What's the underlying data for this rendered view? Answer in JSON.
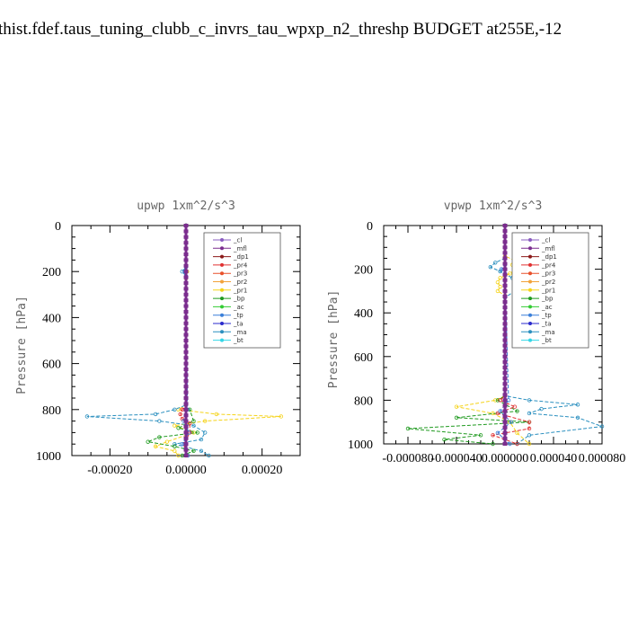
{
  "header": {
    "title": "thist.fdef.taus_tuning_clubb_c_invrs_tau_wpxp_n2_threshp  BUDGET at255E,-12"
  },
  "legend_colors": {
    "_cl": "#8a5cc0",
    "_mfl": "#7b2d8e",
    "_dp1": "#8b1a1a",
    "_pr4": "#e03030",
    "_pr3": "#e8502a",
    "_pr2": "#f2a23a",
    "_pr1": "#f5d31a",
    "_bp": "#1f9a1f",
    "_ac": "#33cc33",
    "_tp": "#3a7fd9",
    "_ta": "#2a2acc",
    "_ma": "#2a8fbf",
    "_bt": "#33d6e6"
  },
  "chart_data": [
    {
      "type": "line",
      "title": "upwp   1xm^2/s^3",
      "ylabel": "Pressure [hPa]",
      "xlim": [
        -0.0003,
        0.0003
      ],
      "ylim": [
        1000,
        0
      ],
      "xticks": [
        -0.0002,
        0.0,
        0.0002
      ],
      "xtick_labels": [
        "-0.00020",
        "0.00000",
        "0.00020"
      ],
      "yticks": [
        0,
        200,
        400,
        600,
        800,
        1000
      ],
      "ytick_labels": [
        "0",
        "200",
        "400",
        "600",
        "800",
        "1000"
      ],
      "legend": [
        "_cl",
        "_mfl",
        "_dp1",
        "_pr4",
        "_pr3",
        "_pr2",
        "_pr1",
        "_bp",
        "_ac",
        "_tp",
        "_ta",
        "_ma",
        "_bt"
      ],
      "legend_position": "top-right",
      "series": [
        {
          "name": "_pr1",
          "y": [
            0,
            150,
            200,
            230,
            780,
            800,
            820,
            830,
            850,
            870,
            900,
            940,
            960,
            980,
            1000
          ],
          "x": [
            0,
            0,
            3e-06,
            0,
            0,
            -2e-05,
            8e-05,
            0.00025,
            5e-05,
            -3e-05,
            2e-05,
            -5e-05,
            -8e-05,
            -3e-05,
            -2e-05
          ]
        },
        {
          "name": "_ma",
          "y": [
            0,
            180,
            200,
            220,
            780,
            800,
            820,
            830,
            850,
            870,
            900,
            930,
            950,
            980,
            1000
          ],
          "x": [
            0,
            0,
            -1e-05,
            0,
            0,
            -3e-05,
            -8e-05,
            -0.00026,
            -7e-05,
            2e-05,
            5e-05,
            4e-05,
            -3e-05,
            4e-05,
            6e-05
          ]
        },
        {
          "name": "_bp",
          "y": [
            0,
            780,
            800,
            850,
            880,
            900,
            920,
            940,
            960,
            980,
            1000
          ],
          "x": [
            0,
            0,
            1e-05,
            2e-05,
            -2e-05,
            3e-05,
            -7e-05,
            -0.0001,
            -3e-05,
            2e-05,
            -1e-05
          ]
        },
        {
          "name": "_pr4",
          "y": [
            0,
            780,
            800,
            820,
            840,
            860,
            900,
            950,
            1000
          ],
          "x": [
            0,
            0,
            -1e-05,
            -1.5e-05,
            -1e-05,
            1e-05,
            1e-05,
            -5e-06,
            0
          ]
        },
        {
          "name": "_tp",
          "y": [
            0,
            180,
            200,
            220,
            800,
            850,
            900,
            950,
            1000
          ],
          "x": [
            0,
            0,
            -4e-06,
            0,
            4e-06,
            -6e-06,
            8e-06,
            -1e-05,
            5e-06
          ]
        },
        {
          "name": "_mfl",
          "y": [
            0,
            1000
          ],
          "x": [
            0,
            0
          ]
        }
      ]
    },
    {
      "type": "line",
      "title": "vpwp   1xm^2/s^3",
      "ylabel": "Pressure [hPa]",
      "xlim": [
        -0.0001,
        8e-05
      ],
      "ylim": [
        1000,
        0
      ],
      "xticks": [
        -8e-05,
        -4e-05,
        0.0,
        4e-05,
        8e-05
      ],
      "xtick_labels": [
        "-0.000080",
        "-0.000040",
        "0.000000",
        "0.000040",
        "0.000080"
      ],
      "yticks": [
        0,
        200,
        400,
        600,
        800,
        1000
      ],
      "ytick_labels": [
        "0",
        "200",
        "400",
        "600",
        "800",
        "1000"
      ],
      "legend": [
        "_cl",
        "_mfl",
        "_dp1",
        "_pr4",
        "_pr3",
        "_pr2",
        "_pr1",
        "_bp",
        "_ac",
        "_tp",
        "_ta",
        "_ma",
        "_bt"
      ],
      "legend_position": "top-right",
      "series": [
        {
          "name": "_pr1",
          "y": [
            0,
            140,
            160,
            180,
            200,
            220,
            240,
            260,
            280,
            300,
            320,
            780,
            800,
            830,
            860,
            900,
            950,
            1000
          ],
          "x": [
            0,
            0,
            8e-06,
            6e-06,
            9e-06,
            4e-06,
            -4e-06,
            -6e-06,
            -4e-06,
            -6e-06,
            0,
            0,
            -8e-06,
            -4e-05,
            -1e-05,
            4e-06,
            1e-05,
            2e-05
          ]
        },
        {
          "name": "_ma",
          "y": [
            0,
            150,
            170,
            190,
            210,
            240,
            260,
            280,
            300,
            330,
            780,
            800,
            820,
            840,
            860,
            880,
            920,
            960,
            1000
          ],
          "x": [
            0,
            0,
            -8e-06,
            -1.2e-05,
            -4e-06,
            6e-06,
            8e-06,
            1.2e-05,
            8e-06,
            0,
            0,
            2e-05,
            6e-05,
            3e-05,
            2e-05,
            6e-05,
            8e-05,
            2e-05,
            1e-05
          ]
        },
        {
          "name": "_bp",
          "y": [
            0,
            780,
            800,
            850,
            880,
            900,
            930,
            960,
            980,
            1000
          ],
          "x": [
            0,
            0,
            -6e-06,
            1e-05,
            -4e-05,
            2e-05,
            -8e-05,
            -2e-05,
            -5e-05,
            -1e-05
          ]
        },
        {
          "name": "_pr4",
          "y": [
            0,
            780,
            800,
            830,
            860,
            900,
            930,
            960,
            1000
          ],
          "x": [
            0,
            0,
            -4e-06,
            8e-06,
            -6e-06,
            2e-05,
            2e-05,
            -1e-05,
            1e-05
          ]
        },
        {
          "name": "_tp",
          "y": [
            0,
            180,
            200,
            220,
            800,
            850,
            900,
            950,
            1000
          ],
          "x": [
            0,
            0,
            -3e-06,
            0,
            3e-06,
            -4e-06,
            5e-06,
            -6e-06,
            4e-06
          ]
        },
        {
          "name": "_mfl",
          "y": [
            0,
            1000
          ],
          "x": [
            0,
            0
          ]
        }
      ]
    }
  ]
}
